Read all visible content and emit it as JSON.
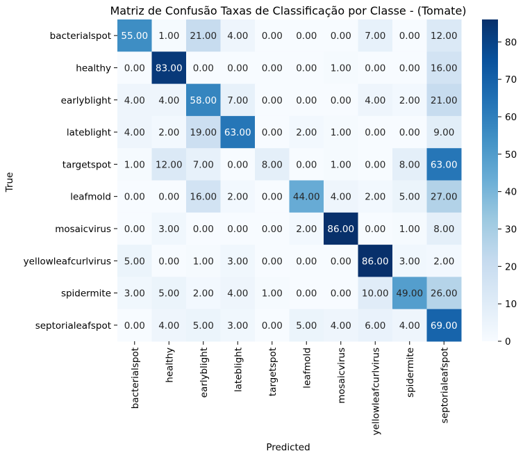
{
  "chart_data": {
    "type": "heatmap",
    "title": "Matriz de Confusão Taxas de Classificação por Classe - (Tomate)",
    "xlabel": "Predicted",
    "ylabel": "True",
    "rows": [
      "bacterialspot",
      "healthy",
      "earlyblight",
      "lateblight",
      "targetspot",
      "leafmold",
      "mosaicvirus",
      "yellowleafcurlvirus",
      "spidermite",
      "septorialeafspot"
    ],
    "cols": [
      "bacterialspot",
      "healthy",
      "earlyblight",
      "lateblight",
      "targetspot",
      "leafmold",
      "mosaicvirus",
      "yellowleafcurlvirus",
      "spidermite",
      "septorialeafspot"
    ],
    "values": [
      [
        55,
        1,
        21,
        4,
        0,
        0,
        0,
        7,
        0,
        12
      ],
      [
        0,
        83,
        0,
        0,
        0,
        0,
        1,
        0,
        0,
        16
      ],
      [
        4,
        4,
        58,
        7,
        0,
        0,
        0,
        4,
        2,
        21
      ],
      [
        4,
        2,
        19,
        63,
        0,
        2,
        1,
        0,
        0,
        9
      ],
      [
        1,
        12,
        7,
        0,
        8,
        0,
        1,
        0,
        8,
        63
      ],
      [
        0,
        0,
        16,
        2,
        0,
        44,
        4,
        2,
        5,
        27
      ],
      [
        0,
        3,
        0,
        0,
        0,
        2,
        86,
        0,
        1,
        8
      ],
      [
        5,
        0,
        1,
        3,
        0,
        0,
        0,
        86,
        3,
        2
      ],
      [
        3,
        5,
        2,
        4,
        1,
        0,
        0,
        10,
        49,
        26
      ],
      [
        0,
        4,
        5,
        3,
        0,
        5,
        4,
        6,
        4,
        69
      ]
    ],
    "value_format": "0.00",
    "colormap": "Blues",
    "vmin": 0,
    "vmax": 86,
    "colorbar_ticks": [
      0,
      10,
      20,
      30,
      40,
      50,
      60,
      70,
      80
    ],
    "grid": false
  }
}
